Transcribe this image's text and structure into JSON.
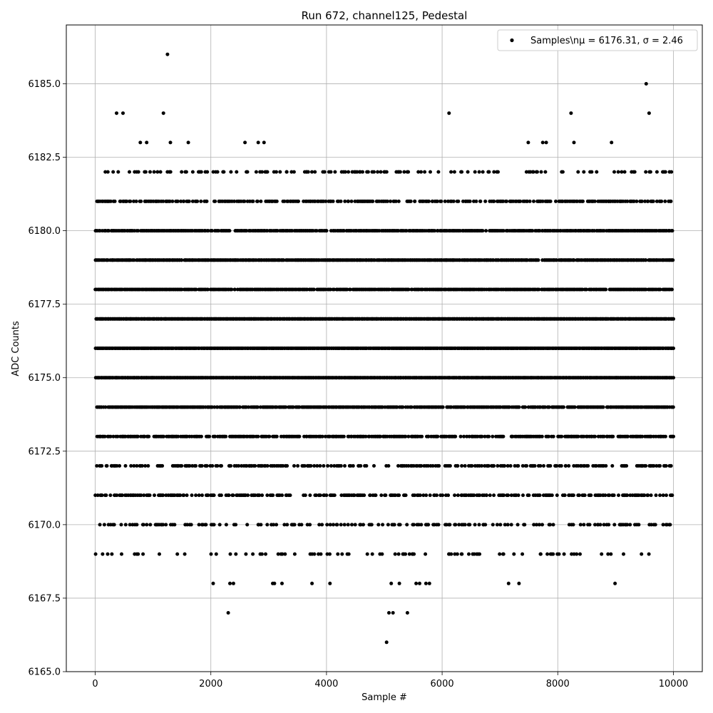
{
  "chart_data": {
    "type": "scatter",
    "title": "Run 672, channel125, Pedestal",
    "xlabel": "Sample #",
    "ylabel": "ADC Counts",
    "xlim": [
      -500,
      10500
    ],
    "ylim": [
      6165.0,
      6187.0
    ],
    "xticks": [
      0,
      2000,
      4000,
      6000,
      8000,
      10000
    ],
    "xtick_labels": [
      "0",
      "2000",
      "4000",
      "6000",
      "8000",
      "10000"
    ],
    "yticks": [
      6165.0,
      6167.5,
      6170.0,
      6172.5,
      6175.0,
      6177.5,
      6180.0,
      6182.5,
      6185.0
    ],
    "ytick_labels": [
      "6165.0",
      "6167.5",
      "6170.0",
      "6172.5",
      "6175.0",
      "6177.5",
      "6180.0",
      "6182.5",
      "6185.0"
    ],
    "grid": true,
    "legend_position": "upper right",
    "series": [
      {
        "name": "Samples\\n$\\mu$ = 6176.31, $\\sigma$ = 2.46",
        "legend_label": "Samples\\nμ = 6176.31, σ = 2.46",
        "marker": "circle",
        "color": "#000000",
        "n_samples": 10000,
        "mean": 6176.31,
        "sigma": 2.46,
        "sampled_points": true,
        "rare_points": [
          {
            "x": 1250,
            "y": 6186
          },
          {
            "x": 9530,
            "y": 6185
          },
          {
            "x": 370,
            "y": 6184
          },
          {
            "x": 480,
            "y": 6184
          },
          {
            "x": 1180,
            "y": 6184
          },
          {
            "x": 6120,
            "y": 6184
          },
          {
            "x": 8230,
            "y": 6184
          },
          {
            "x": 9580,
            "y": 6184
          },
          {
            "x": 5040,
            "y": 6166
          },
          {
            "x": 2300,
            "y": 6167
          },
          {
            "x": 5080,
            "y": 6167
          },
          {
            "x": 5150,
            "y": 6167
          },
          {
            "x": 5400,
            "y": 6167
          },
          {
            "x": 2040,
            "y": 6168
          },
          {
            "x": 2330,
            "y": 6168
          },
          {
            "x": 2390,
            "y": 6168
          },
          {
            "x": 3070,
            "y": 6168
          },
          {
            "x": 3100,
            "y": 6168
          },
          {
            "x": 3230,
            "y": 6168
          },
          {
            "x": 3750,
            "y": 6168
          },
          {
            "x": 4060,
            "y": 6168
          },
          {
            "x": 5120,
            "y": 6168
          },
          {
            "x": 5260,
            "y": 6168
          },
          {
            "x": 5550,
            "y": 6168
          },
          {
            "x": 5610,
            "y": 6168
          },
          {
            "x": 5720,
            "y": 6168
          },
          {
            "x": 5780,
            "y": 6168
          },
          {
            "x": 7150,
            "y": 6168
          },
          {
            "x": 7330,
            "y": 6168
          },
          {
            "x": 8990,
            "y": 6168
          },
          {
            "x": 890,
            "y": 6183
          },
          {
            "x": 780,
            "y": 6183
          },
          {
            "x": 1300,
            "y": 6183
          },
          {
            "x": 1610,
            "y": 6183
          },
          {
            "x": 2590,
            "y": 6183
          },
          {
            "x": 2820,
            "y": 6183
          },
          {
            "x": 2920,
            "y": 6183
          },
          {
            "x": 7490,
            "y": 6183
          },
          {
            "x": 7740,
            "y": 6183
          },
          {
            "x": 7800,
            "y": 6183
          },
          {
            "x": 8280,
            "y": 6183
          },
          {
            "x": 8930,
            "y": 6183
          }
        ]
      }
    ]
  }
}
